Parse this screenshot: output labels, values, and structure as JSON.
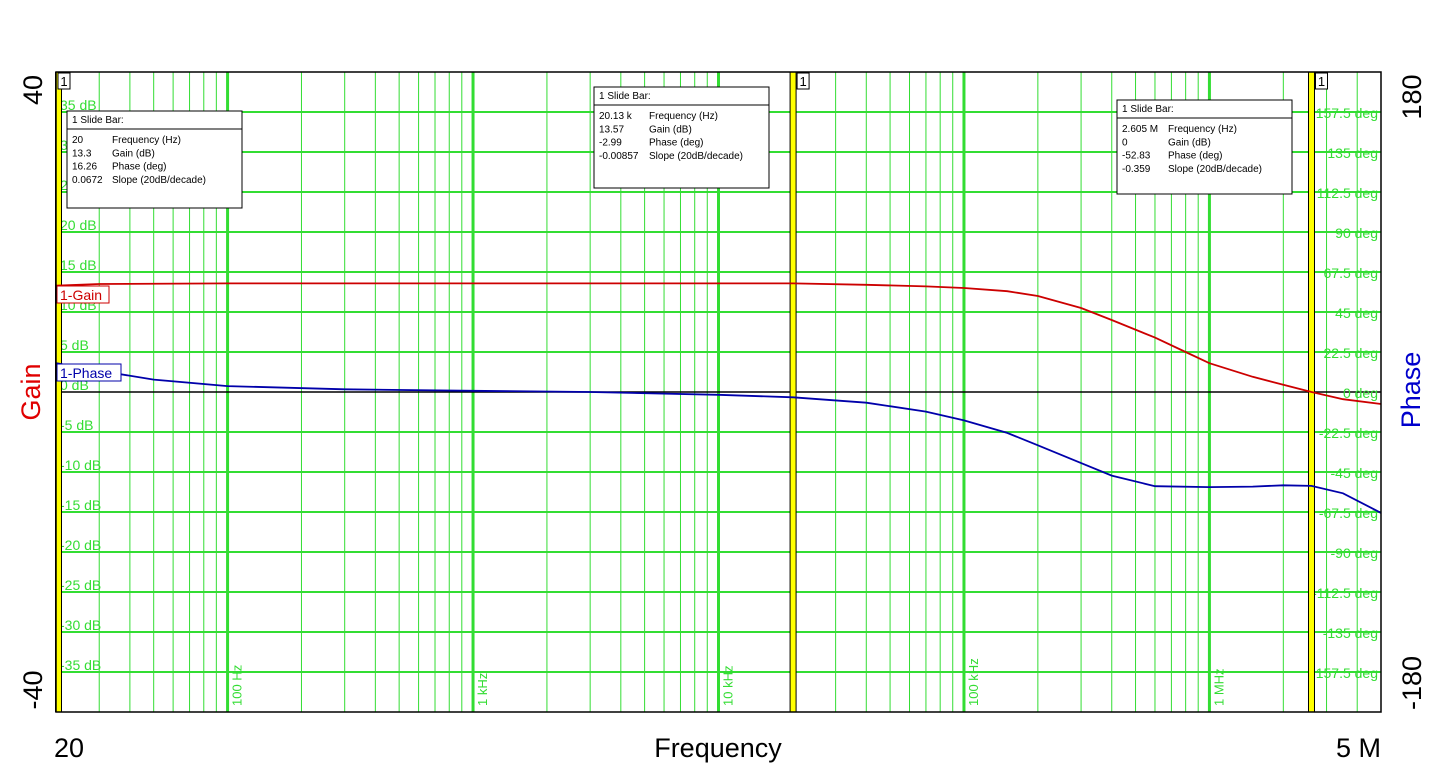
{
  "chart_data": {
    "type": "line",
    "title": "",
    "xlabel": "Frequency",
    "x_scale": "log",
    "xlim_labels": {
      "min": "20",
      "max": "5 M"
    },
    "xlim": [
      20,
      5000000
    ],
    "x_decade_labels": [
      {
        "value": 100,
        "label": "100 Hz"
      },
      {
        "value": 1000,
        "label": "1 kHz"
      },
      {
        "value": 10000,
        "label": "10 kHz"
      },
      {
        "value": 100000,
        "label": "100 kHz"
      },
      {
        "value": 1000000,
        "label": "1 MHz"
      }
    ],
    "y_left": {
      "label": "Gain",
      "color": "#e00000",
      "range_labels": {
        "min": "-40",
        "max": "40"
      },
      "ylim": [
        -40,
        40
      ],
      "ticks": [
        {
          "value": 35,
          "label": "35 dB"
        },
        {
          "value": 30,
          "label": "30 dB"
        },
        {
          "value": 25,
          "label": "25 dB"
        },
        {
          "value": 20,
          "label": "20 dB"
        },
        {
          "value": 15,
          "label": "15 dB"
        },
        {
          "value": 10,
          "label": "10 dB"
        },
        {
          "value": 5,
          "label": "5 dB"
        },
        {
          "value": 0,
          "label": "0 dB"
        },
        {
          "value": -5,
          "label": "-5 dB"
        },
        {
          "value": -10,
          "label": "-10 dB"
        },
        {
          "value": -15,
          "label": "-15 dB"
        },
        {
          "value": -20,
          "label": "-20 dB"
        },
        {
          "value": -25,
          "label": "-25 dB"
        },
        {
          "value": -30,
          "label": "-30 dB"
        },
        {
          "value": -35,
          "label": "-35 dB"
        }
      ]
    },
    "y_right": {
      "label": "Phase",
      "color": "#0000cc",
      "range_labels": {
        "min": "-180",
        "max": "180"
      },
      "ylim": [
        -180,
        180
      ],
      "ticks": [
        {
          "value": 157.5,
          "label": "157.5 deg"
        },
        {
          "value": 135,
          "label": "135 deg"
        },
        {
          "value": 112.5,
          "label": "112.5 deg"
        },
        {
          "value": 90,
          "label": "90 deg"
        },
        {
          "value": 67.5,
          "label": "67.5 deg"
        },
        {
          "value": 45,
          "label": "45 deg"
        },
        {
          "value": 22.5,
          "label": "22.5 deg"
        },
        {
          "value": 0,
          "label": "0 deg"
        },
        {
          "value": -22.5,
          "label": "-22.5 deg"
        },
        {
          "value": -45,
          "label": "-45 deg"
        },
        {
          "value": -67.5,
          "label": "-67.5 deg"
        },
        {
          "value": -90,
          "label": "-90 deg"
        },
        {
          "value": -112.5,
          "label": "-112.5 deg"
        },
        {
          "value": -135,
          "label": "-135 deg"
        },
        {
          "value": -157.5,
          "label": "-157.5 deg"
        }
      ]
    },
    "grid": true,
    "grid_color": "#33dd33",
    "series": [
      {
        "name": "1-Gain",
        "axis": "left",
        "color": "#cc0000",
        "x": [
          20,
          30,
          100,
          1000,
          10000,
          20130,
          40000,
          70000,
          100000,
          150000,
          200000,
          300000,
          400000,
          600000,
          800000,
          1000000,
          1500000,
          2000000,
          2605000,
          3500000,
          5000000
        ],
        "y": [
          13.3,
          13.5,
          13.57,
          13.57,
          13.57,
          13.57,
          13.4,
          13.2,
          13.0,
          12.6,
          12.0,
          10.5,
          9.0,
          6.8,
          5.0,
          3.6,
          1.9,
          0.9,
          0.0,
          -0.9,
          -1.5
        ]
      },
      {
        "name": "1-Phase",
        "axis": "right",
        "color": "#0000aa",
        "x": [
          20,
          30,
          50,
          100,
          300,
          1000,
          3000,
          10000,
          20130,
          40000,
          70000,
          100000,
          150000,
          200000,
          300000,
          400000,
          600000,
          1000000,
          1500000,
          2000000,
          2605000,
          3500000,
          5000000
        ],
        "y": [
          16.26,
          12.0,
          7.0,
          3.3,
          1.5,
          0.7,
          0.0,
          -1.6,
          -2.99,
          -6.0,
          -11.0,
          -16.0,
          -23.0,
          -30.0,
          -40.0,
          -47.0,
          -53.0,
          -53.5,
          -53.2,
          -52.5,
          -52.83,
          -57.0,
          -68.0
        ]
      }
    ],
    "legend": [
      {
        "label": "1-Gain",
        "color": "#cc0000"
      },
      {
        "label": "1-Phase",
        "color": "#0000aa"
      }
    ],
    "slide_bars": [
      {
        "tag": "1",
        "frequency_value": 20,
        "title": "1  Slide Bar:",
        "rows": [
          {
            "value": "20",
            "name": "Frequency (Hz)"
          },
          {
            "value": "13.3",
            "name": "Gain (dB)"
          },
          {
            "value": "16.26",
            "name": "Phase (deg)"
          },
          {
            "value": "0.0672",
            "name": "Slope (20dB/decade)"
          }
        ]
      },
      {
        "tag": "1",
        "frequency_value": 20130,
        "title": "1  Slide Bar:",
        "rows": [
          {
            "value": "20.13 k",
            "name": "Frequency (Hz)"
          },
          {
            "value": "13.57",
            "name": "Gain (dB)"
          },
          {
            "value": "-2.99",
            "name": "Phase (deg)"
          },
          {
            "value": "-0.00857",
            "name": "Slope (20dB/decade)"
          }
        ]
      },
      {
        "tag": "1",
        "frequency_value": 2605000,
        "title": "1  Slide Bar:",
        "rows": [
          {
            "value": "2.605 M",
            "name": "Frequency (Hz)"
          },
          {
            "value": "0",
            "name": "Gain (dB)"
          },
          {
            "value": "-52.83",
            "name": "Phase (deg)"
          },
          {
            "value": "-0.359",
            "name": "Slope (20dB/decade)"
          }
        ]
      }
    ]
  }
}
